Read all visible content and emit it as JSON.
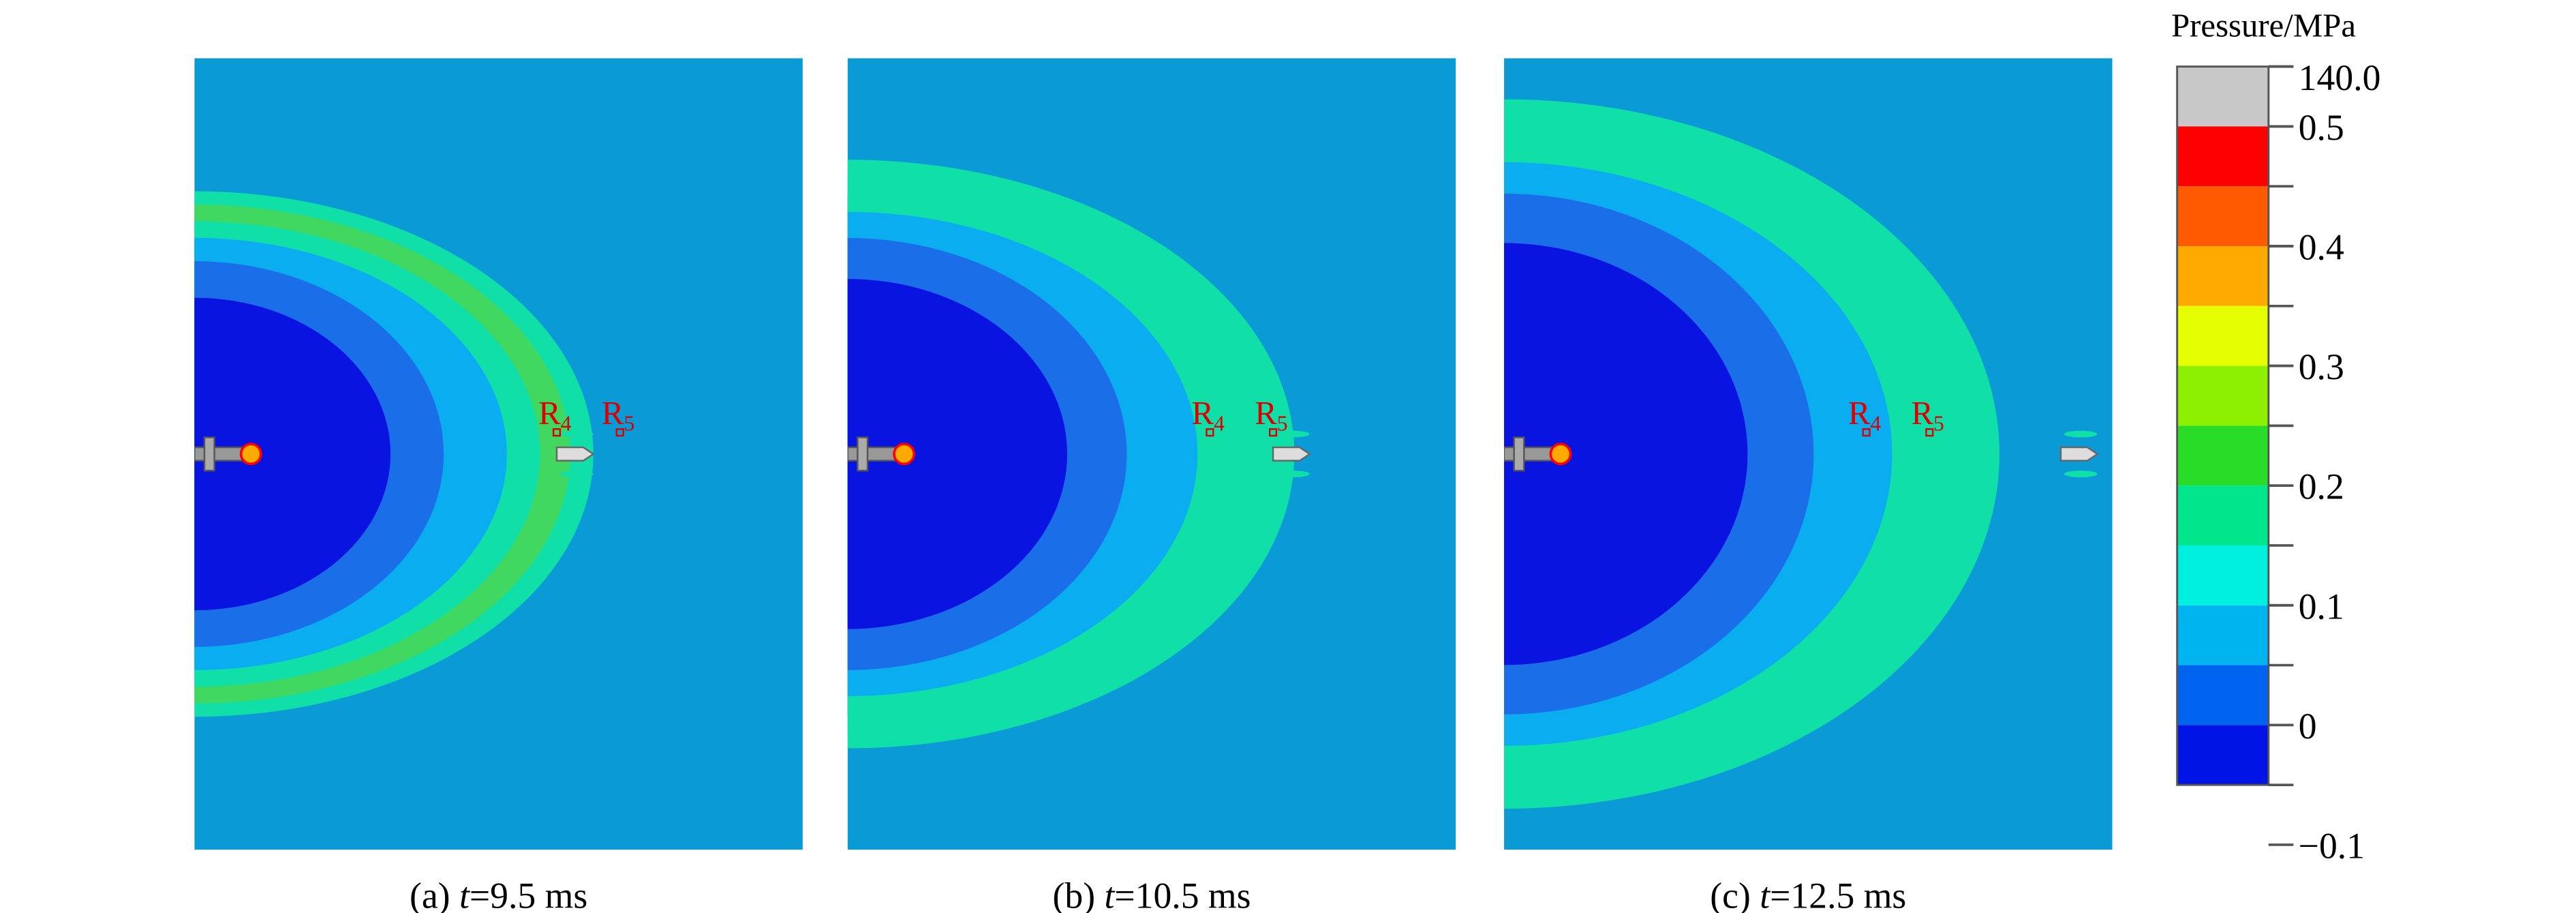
{
  "panels": [
    {
      "label": "(a)",
      "variable": "t",
      "value": "=9.5 ms",
      "points": [
        {
          "letter": "R",
          "index": "4"
        },
        {
          "letter": "R",
          "index": "5"
        }
      ]
    },
    {
      "label": "(b)",
      "variable": "t",
      "value": "=10.5 ms",
      "points": [
        {
          "letter": "R",
          "index": "4"
        },
        {
          "letter": "R",
          "index": "5"
        }
      ]
    },
    {
      "label": "(c)",
      "variable": "t",
      "value": "=12.5 ms",
      "points": [
        {
          "letter": "R",
          "index": "4"
        },
        {
          "letter": "R",
          "index": "5"
        }
      ]
    }
  ],
  "colorbar": {
    "title": "Pressure/MPa",
    "colors": [
      "#c8c8c8",
      "#ff0000",
      "#ff5a00",
      "#ffaa00",
      "#e6ff00",
      "#8cf000",
      "#28dc28",
      "#00e68c",
      "#00f0e0",
      "#00b4f0",
      "#0064f0",
      "#0014e6"
    ],
    "ticks": [
      {
        "value": 140.0,
        "label": "140.0"
      },
      0.5,
      0.4,
      0.3,
      0.2,
      0.1,
      0,
      {
        "value": -0.1,
        "label": "−0.1"
      }
    ]
  }
}
